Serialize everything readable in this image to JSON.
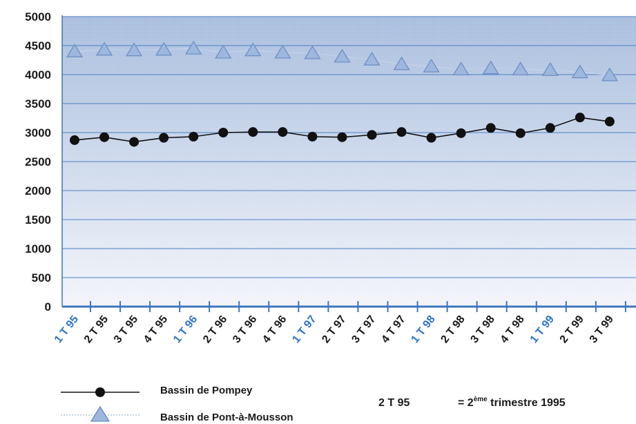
{
  "chart_data": {
    "type": "line",
    "title": "",
    "xlabel": "",
    "ylabel": "",
    "ylim": [
      0,
      5000
    ],
    "yticks": [
      "0",
      "500",
      "1000",
      "1500",
      "2000",
      "2500",
      "3000",
      "3500",
      "4000",
      "4500",
      "5000"
    ],
    "categories": [
      "1 T 95",
      "2 T 95",
      "3 T 95",
      "4 T 95",
      "1 T 96",
      "2 T 96",
      "3 T 96",
      "4 T 96",
      "1 T 97",
      "2 T 97",
      "3 T 97",
      "4 T 97",
      "1 T 98",
      "2 T 98",
      "3 T 98",
      "4 T 98",
      "1 T 99",
      "2 T 99",
      "3 T 99"
    ],
    "highlighted_categories": [
      "1 T 95",
      "1 T 96",
      "1 T 97",
      "1 T 98",
      "1 T 99"
    ],
    "grid": true,
    "legend_position": "bottom-left",
    "series": [
      {
        "name": "Bassin de Pompey",
        "marker": "circle",
        "color": "#111111",
        "values": [
          2870,
          2920,
          2840,
          2910,
          2930,
          3000,
          3010,
          3010,
          2930,
          2920,
          2960,
          3010,
          2910,
          2990,
          3080,
          2990,
          3080,
          3260,
          3190
        ]
      },
      {
        "name": "Bassin de Pont-à-Mousson",
        "marker": "triangle",
        "color": "#7f9fcc",
        "values": [
          4400,
          4430,
          4420,
          4430,
          4450,
          4380,
          4420,
          4380,
          4370,
          4310,
          4260,
          4180,
          4140,
          4090,
          4110,
          4090,
          4080,
          4040,
          3990
        ]
      }
    ],
    "note": {
      "code": "2 T 95",
      "equals": "= 2",
      "superscript": "ème",
      "rest": " trimestre 1995"
    }
  },
  "colors": {
    "plot_bg_top": "#a9bede",
    "plot_bg_bottom": "#f3f5fa",
    "grid": "#4e7fc2",
    "axis": "#3f74bd",
    "tick_label_highlight": "#2f74c6",
    "tick_label_normal": "#1a1a1a",
    "triangle_fill": "#9db7dd",
    "triangle_stroke": "#6a8cc4"
  }
}
